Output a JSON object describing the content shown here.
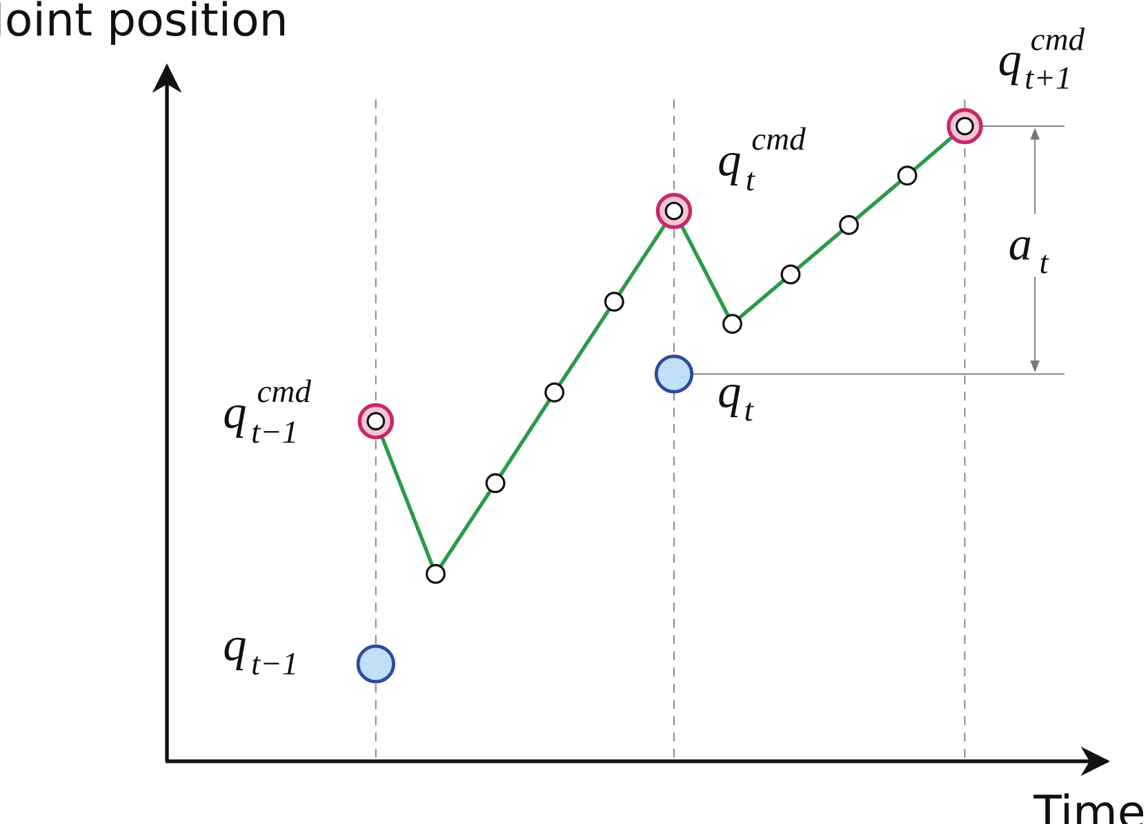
{
  "axes": {
    "y_label": "Joint position",
    "x_label": "Time"
  },
  "labels": [
    {
      "base": "q",
      "sub": "t−1",
      "sup": "cmd"
    },
    {
      "base": "q",
      "sub": "t",
      "sup": "cmd"
    },
    {
      "base": "q",
      "sub": "t+1",
      "sup": "cmd"
    },
    {
      "base": "q",
      "sub": "t−1"
    },
    {
      "base": "q",
      "sub": "t"
    },
    {
      "base": "a",
      "sub": "t"
    }
  ]
}
